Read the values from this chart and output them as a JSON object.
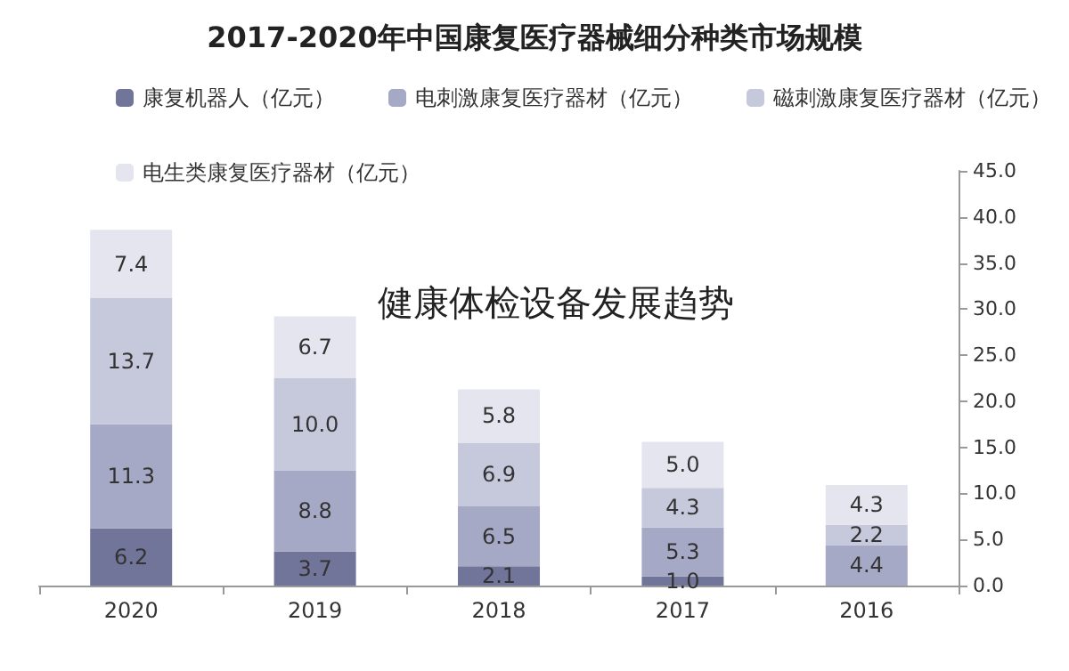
{
  "chart_data": {
    "type": "bar",
    "stacked": true,
    "title": "2017-2020年中国康复医疗器械细分种类市场规模",
    "annotations": [
      "健康体检设备发展趋势"
    ],
    "categories": [
      "2020",
      "2019",
      "2018",
      "2017",
      "2016"
    ],
    "series": [
      {
        "name": "康复机器人（亿元）",
        "color": "#71759a",
        "values": [
          6.2,
          3.7,
          2.1,
          1.0,
          null
        ],
        "value_labels": [
          "6.2",
          "3.7",
          "2.1",
          "1.0",
          null
        ]
      },
      {
        "name": "电刺激康复医疗器材（亿元）",
        "color": "#a6a9c5",
        "values": [
          11.3,
          8.8,
          6.5,
          5.3,
          4.4
        ],
        "value_labels": [
          "11.3",
          "8.8",
          "6.5",
          "5.3",
          "4.4"
        ]
      },
      {
        "name": "磁刺激康复医疗器材（亿元）",
        "color": "#c6c8dc",
        "values": [
          13.7,
          10.0,
          6.9,
          4.3,
          2.2
        ],
        "value_labels": [
          "13.7",
          "10.0",
          "6.9",
          "4.3",
          "2.2"
        ]
      },
      {
        "name": "电生类康复医疗器材（亿元）",
        "color": "#e4e5ee",
        "values": [
          7.4,
          6.7,
          5.8,
          5.0,
          4.3
        ],
        "value_labels": [
          "7.4",
          "6.7",
          "5.8",
          "5.0",
          "4.3"
        ]
      }
    ],
    "ylim": [
      0,
      45
    ],
    "yticks": [
      {
        "value": 0,
        "label": "0.0"
      },
      {
        "value": 5,
        "label": "5.0"
      },
      {
        "value": 10,
        "label": "10.0"
      },
      {
        "value": 15,
        "label": "15.0"
      },
      {
        "value": 20,
        "label": "20.0"
      },
      {
        "value": 25,
        "label": "25.0"
      },
      {
        "value": 30,
        "label": "30.0"
      },
      {
        "value": 35,
        "label": "35.0"
      },
      {
        "value": 40,
        "label": "40.0"
      },
      {
        "value": 45,
        "label": "45.0"
      }
    ],
    "grid": false,
    "legend": "top"
  }
}
